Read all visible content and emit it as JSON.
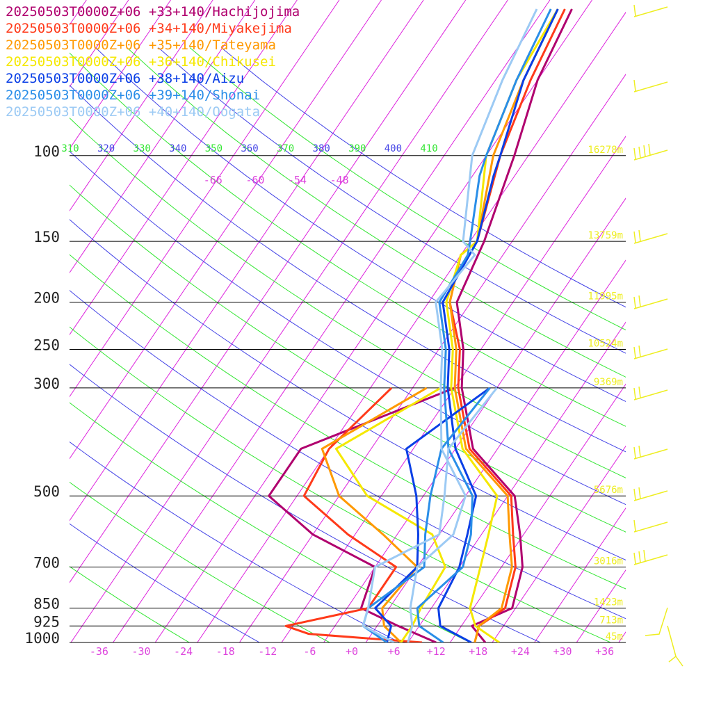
{
  "chart_data": {
    "type": "line",
    "subtype": "skew-T log-P sounding",
    "title": "",
    "xlabel": "",
    "ylabel": "",
    "xlim": [
      -40,
      40
    ],
    "ylim": [
      1000,
      100
    ],
    "grid": true,
    "legend_placement": "top-left",
    "pressure_levels": [
      100,
      150,
      200,
      250,
      300,
      500,
      700,
      850,
      925,
      1000
    ],
    "temp_ticks": [
      -36,
      -30,
      -24,
      -18,
      -12,
      -6,
      0,
      6,
      12,
      18,
      24,
      30,
      36
    ],
    "temp_tick_labels": [
      "-36",
      "-30",
      "-24",
      "-18",
      "-12",
      "-6",
      "+0",
      "+6",
      "+12",
      "+18",
      "+24",
      "+30",
      "+36"
    ],
    "upper_temp_labels": [
      "-66",
      "-60",
      "-54",
      "-48"
    ],
    "theta_labels": [
      "310",
      "320",
      "330",
      "340",
      "350",
      "360",
      "370",
      "380",
      "390",
      "400",
      "410"
    ],
    "height_labels": [
      {
        "p": 100,
        "text": "16278m"
      },
      {
        "p": 150,
        "text": "13759m"
      },
      {
        "p": 200,
        "text": "11995m"
      },
      {
        "p": 250,
        "text": "10524m"
      },
      {
        "p": 300,
        "text": "9369m"
      },
      {
        "p": 500,
        "text": "5676m"
      },
      {
        "p": 700,
        "text": "3016m"
      },
      {
        "p": 850,
        "text": "1423m"
      },
      {
        "p": 925,
        "text": "713m"
      },
      {
        "p": 1000,
        "text": "45m"
      }
    ],
    "series": [
      {
        "name": "20250503T0000Z+06 +33+140/Hachijojima",
        "color": "#b0006e",
        "temperature": [
          [
            1000,
            19
          ],
          [
            925,
            15.5
          ],
          [
            850,
            19.5
          ],
          [
            700,
            17
          ],
          [
            600,
            13.5
          ],
          [
            500,
            9
          ],
          [
            400,
            -1.5
          ],
          [
            300,
            -9
          ],
          [
            250,
            -12.5
          ],
          [
            200,
            -18
          ],
          [
            150,
            -20
          ],
          [
            100,
            -24
          ],
          [
            70,
            -28
          ],
          [
            50,
            -30
          ]
        ],
        "dewpoint": [
          [
            1000,
            12
          ],
          [
            925,
            5
          ],
          [
            850,
            -2
          ],
          [
            700,
            -4
          ],
          [
            600,
            -16
          ],
          [
            500,
            -26
          ],
          [
            400,
            -26
          ],
          [
            300,
            -10
          ]
        ]
      },
      {
        "name": "20250503T0000Z+06 +34+140/Miyakejima",
        "color": "#ff3a1a",
        "temperature": [
          [
            1000,
            17.5
          ],
          [
            925,
            16.5
          ],
          [
            850,
            18.5
          ],
          [
            700,
            16
          ],
          [
            600,
            12.5
          ],
          [
            500,
            8.5
          ],
          [
            400,
            -2
          ],
          [
            300,
            -9.5
          ],
          [
            250,
            -13
          ],
          [
            200,
            -19
          ],
          [
            160,
            -22
          ],
          [
            150,
            -21
          ],
          [
            100,
            -26
          ],
          [
            70,
            -29
          ],
          [
            50,
            -31
          ]
        ],
        "dewpoint": [
          [
            1000,
            10
          ],
          [
            960,
            -7
          ],
          [
            925,
            -11
          ],
          [
            850,
            -1
          ],
          [
            700,
            -1
          ],
          [
            600,
            -11
          ],
          [
            500,
            -21
          ],
          [
            400,
            -22
          ],
          [
            300,
            -19
          ]
        ]
      },
      {
        "name": "20250503T0000Z+06 +35+140/Tateyama",
        "color": "#ff9900",
        "temperature": [
          [
            1000,
            17.5
          ],
          [
            925,
            16.5
          ],
          [
            850,
            18
          ],
          [
            700,
            15.5
          ],
          [
            600,
            12
          ],
          [
            500,
            8
          ],
          [
            400,
            -2.5
          ],
          [
            300,
            -10
          ],
          [
            250,
            -13.5
          ],
          [
            200,
            -19
          ],
          [
            160,
            -22
          ],
          [
            150,
            -21
          ],
          [
            100,
            -27
          ],
          [
            70,
            -30
          ],
          [
            50,
            -32
          ]
        ],
        "dewpoint": [
          [
            1000,
            7
          ],
          [
            925,
            3
          ],
          [
            850,
            1
          ],
          [
            700,
            2
          ],
          [
            600,
            -6
          ],
          [
            500,
            -16
          ],
          [
            400,
            -23
          ],
          [
            300,
            -14
          ]
        ]
      },
      {
        "name": "20250503T0000Z+06 +36+140/Chikusei",
        "color": "#f5e800",
        "temperature": [
          [
            1000,
            21
          ],
          [
            925,
            16
          ],
          [
            850,
            13.5
          ],
          [
            700,
            11
          ],
          [
            600,
            9
          ],
          [
            500,
            6.5
          ],
          [
            400,
            -3
          ],
          [
            300,
            -10.5
          ],
          [
            250,
            -14
          ],
          [
            200,
            -19.5
          ],
          [
            160,
            -22
          ],
          [
            150,
            -21
          ],
          [
            100,
            -28
          ],
          [
            70,
            -31
          ],
          [
            50,
            -32
          ]
        ],
        "dewpoint": [
          [
            1000,
            7
          ],
          [
            925,
            7
          ],
          [
            850,
            6.5
          ],
          [
            700,
            6
          ],
          [
            600,
            1
          ],
          [
            500,
            -12
          ],
          [
            400,
            -21
          ],
          [
            300,
            -12
          ]
        ]
      },
      {
        "name": "20250503T0000Z+06 +38+140/Aizu",
        "color": "#0a3fe6",
        "temperature": [
          [
            1000,
            17
          ],
          [
            925,
            11
          ],
          [
            850,
            9
          ],
          [
            700,
            8
          ],
          [
            600,
            6
          ],
          [
            500,
            3.5
          ],
          [
            400,
            -4
          ],
          [
            300,
            -11
          ],
          [
            250,
            -14.5
          ],
          [
            200,
            -20
          ],
          [
            150,
            -21
          ],
          [
            110,
            -25
          ],
          [
            100,
            -26
          ],
          [
            70,
            -30
          ],
          [
            50,
            -32
          ]
        ],
        "dewpoint": [
          [
            1000,
            5
          ],
          [
            925,
            4
          ],
          [
            850,
            0
          ],
          [
            700,
            2
          ],
          [
            600,
            -1
          ],
          [
            500,
            -5
          ],
          [
            400,
            -11
          ],
          [
            300,
            -5
          ]
        ]
      },
      {
        "name": "20250503T0000Z+06 +39+140/Shonai",
        "color": "#2a8ee8",
        "temperature": [
          [
            1000,
            13
          ],
          [
            925,
            8
          ],
          [
            850,
            6
          ],
          [
            700,
            8.5
          ],
          [
            600,
            6.5
          ],
          [
            500,
            3
          ],
          [
            400,
            -5
          ],
          [
            300,
            -11.5
          ],
          [
            250,
            -15
          ],
          [
            200,
            -20.5
          ],
          [
            160,
            -21
          ],
          [
            150,
            -22
          ],
          [
            110,
            -27
          ],
          [
            100,
            -28
          ],
          [
            70,
            -31
          ],
          [
            50,
            -33
          ]
        ],
        "dewpoint": [
          [
            1000,
            5
          ],
          [
            925,
            0
          ],
          [
            850,
            -1
          ],
          [
            700,
            3
          ],
          [
            600,
            0
          ],
          [
            500,
            -3
          ],
          [
            400,
            -6
          ],
          [
            300,
            -5
          ]
        ]
      },
      {
        "name": "20250503T0000Z+06 +40+140/Oogata",
        "color": "#9ccaf4",
        "temperature": [
          [
            1000,
            8
          ],
          [
            925,
            7
          ],
          [
            850,
            5
          ],
          [
            700,
            2
          ],
          [
            600,
            4
          ],
          [
            500,
            2
          ],
          [
            400,
            -6
          ],
          [
            300,
            -12
          ],
          [
            250,
            -15.5
          ],
          [
            200,
            -21
          ],
          [
            160,
            -20
          ],
          [
            150,
            -23
          ],
          [
            100,
            -30
          ],
          [
            70,
            -33
          ],
          [
            50,
            -35
          ]
        ],
        "dewpoint": [
          [
            1000,
            6
          ],
          [
            925,
            0
          ],
          [
            850,
            -1
          ],
          [
            700,
            -4
          ],
          [
            600,
            2
          ],
          [
            500,
            -1
          ],
          [
            400,
            -5
          ],
          [
            300,
            -4
          ]
        ]
      }
    ]
  }
}
